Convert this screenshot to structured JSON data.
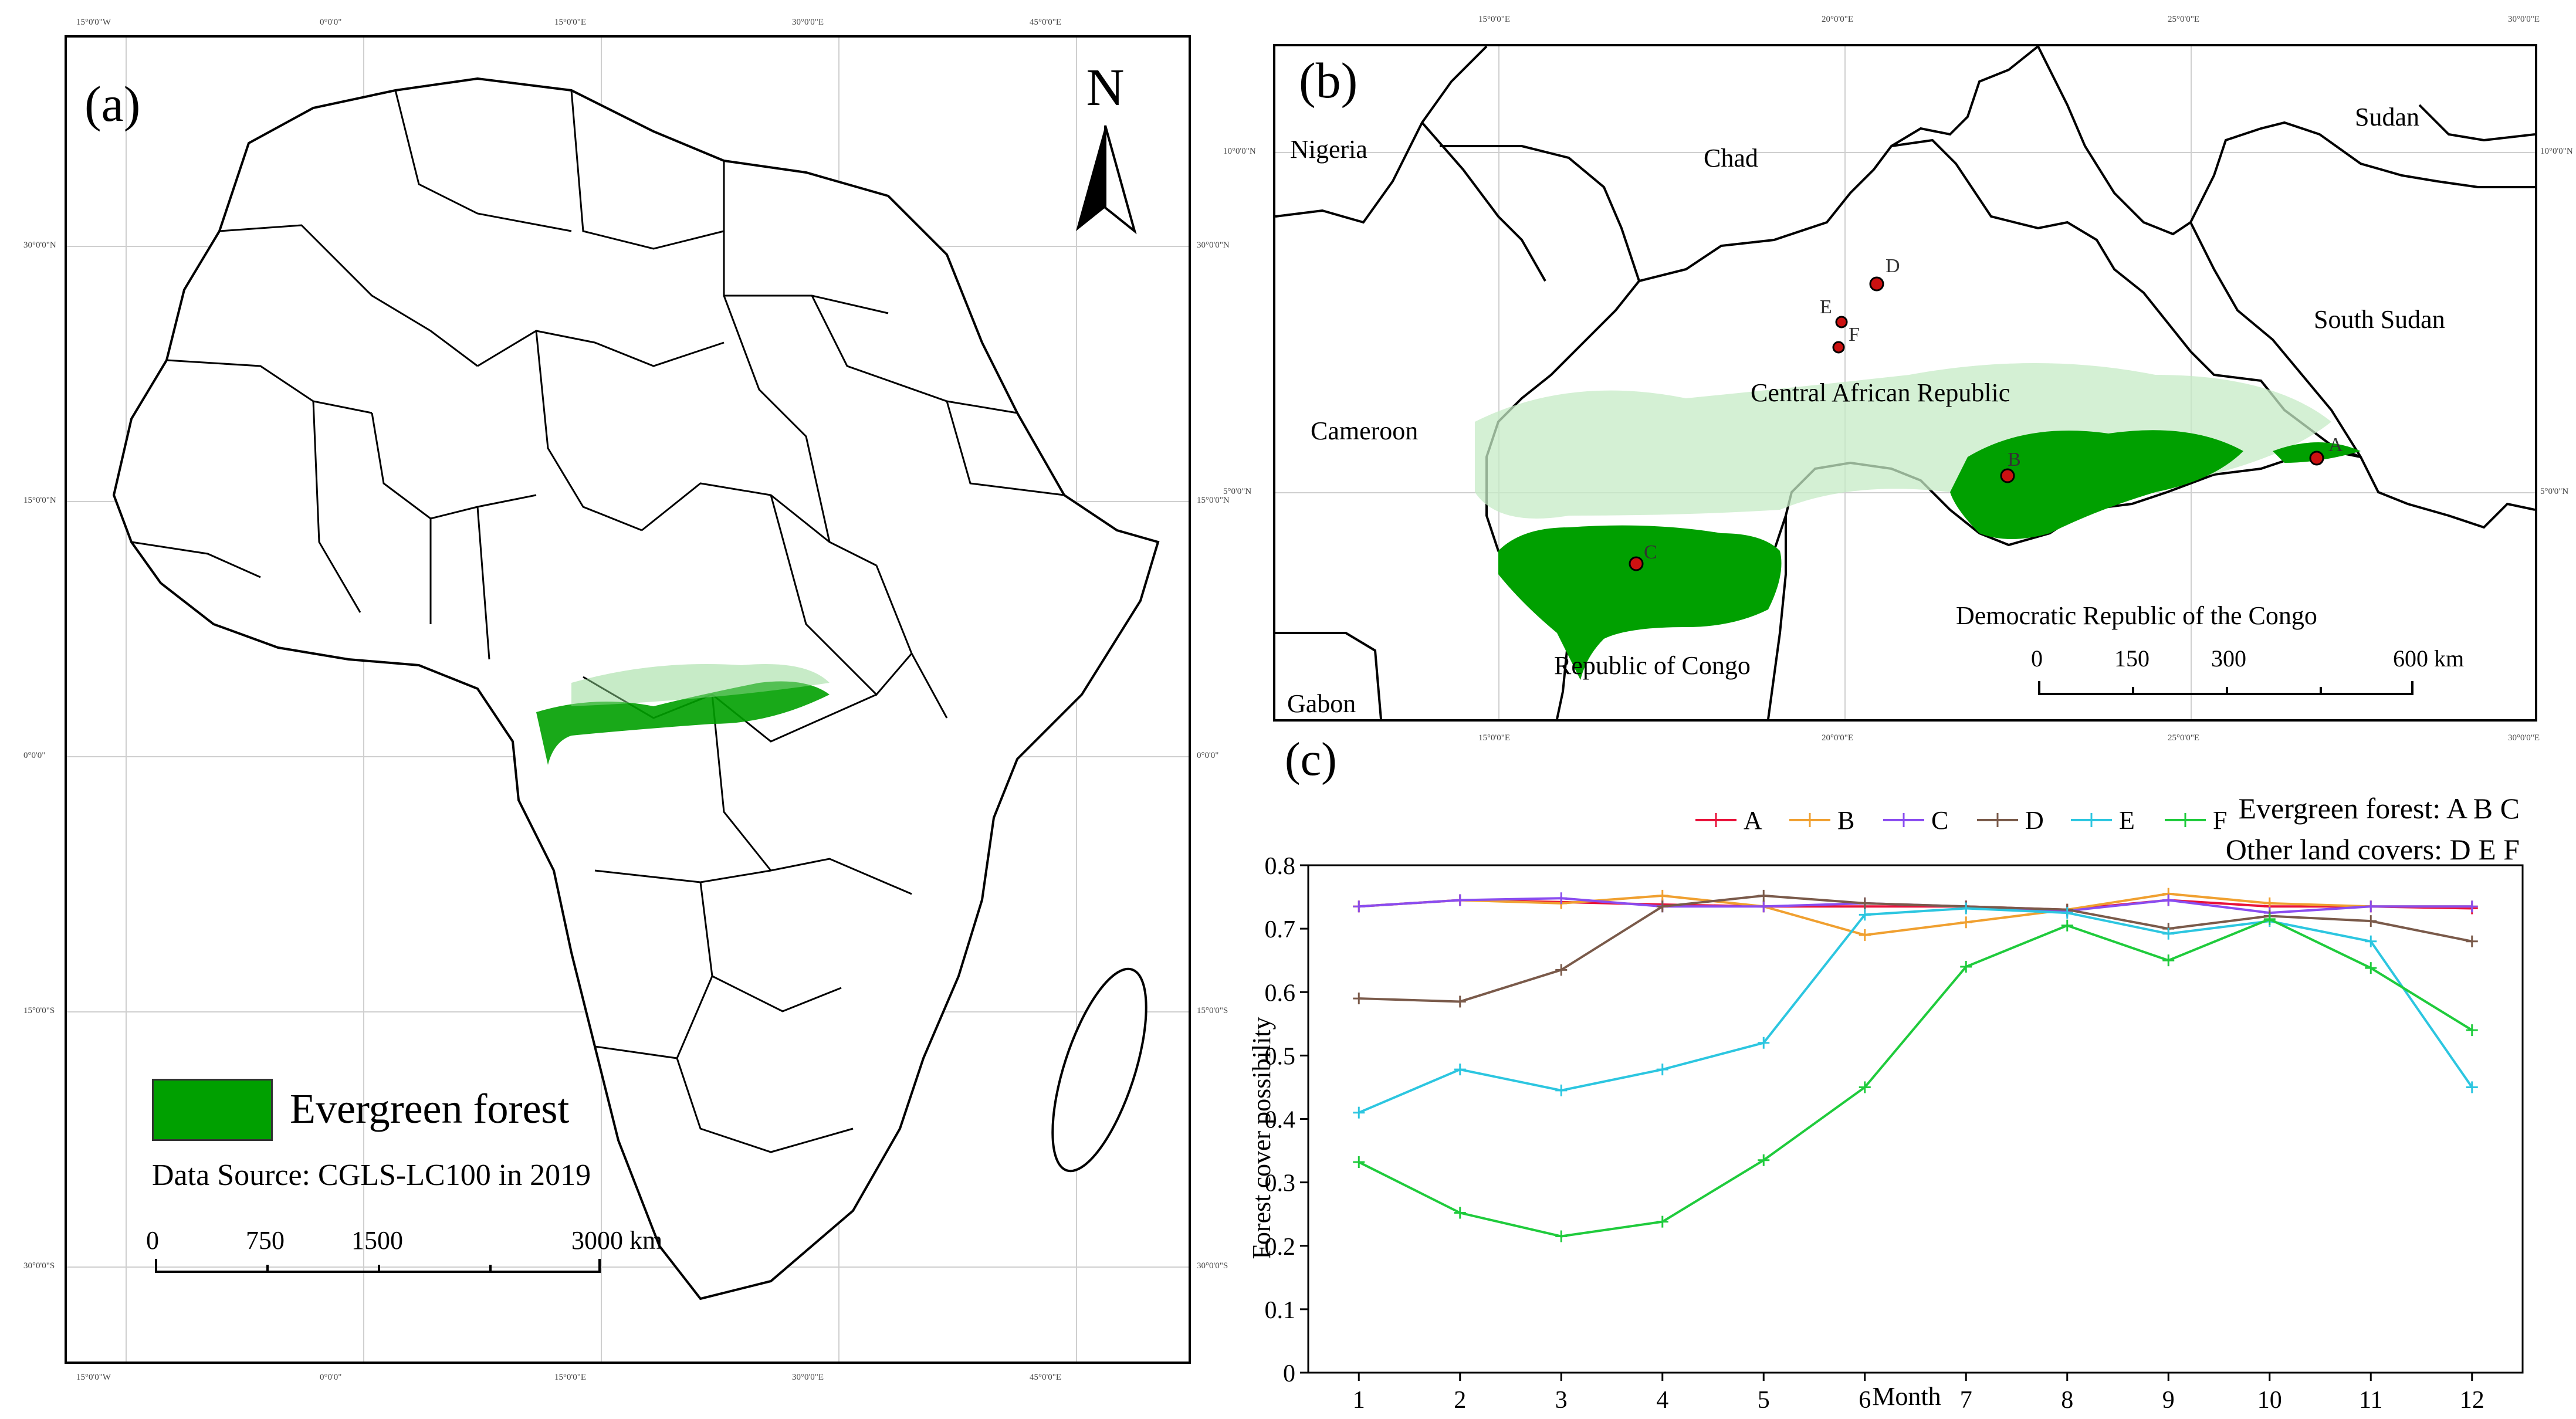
{
  "panel_a": {
    "label": "(a)",
    "north": "N",
    "lon_ticks": [
      "15°0'0\"W",
      "0°0'0\"",
      "15°0'0\"E",
      "30°0'0\"E",
      "45°0'0\"E"
    ],
    "lat_ticks": [
      "30°0'0\"N",
      "15°0'0\"N",
      "0°0'0\"",
      "15°0'0\"S",
      "30°0'0\"S"
    ],
    "legend_label": "Evergreen forest",
    "legend_color": "#00a000",
    "data_source": "Data Source: CGLS-LC100 in 2019",
    "scale": [
      "0",
      "750",
      "1500",
      "3000 km"
    ]
  },
  "panel_b": {
    "label": "(b)",
    "lon_ticks": [
      "15°0'0\"E",
      "20°0'0\"E",
      "25°0'0\"E",
      "30°0'0\"E"
    ],
    "lat_ticks": [
      "10°0'0\"N",
      "5°0'0\"N"
    ],
    "countries": [
      "Nigeria",
      "Chad",
      "Sudan",
      "South Sudan",
      "Cameroon",
      "Central African Republic",
      "Democratic Republic of the Congo",
      "Republic of Congo",
      "Gabon"
    ],
    "points": [
      "A",
      "B",
      "C",
      "D",
      "E",
      "F"
    ],
    "point_color": "#cc1111",
    "scale": [
      "0",
      "150",
      "300",
      "600 km"
    ]
  },
  "chart_data": {
    "type": "line",
    "panel_label": "(c)",
    "title_lines": [
      "Evergreen forest: A B C",
      "Other land covers: D E F"
    ],
    "xlabel": "Month",
    "ylabel": "Forest cover possibility",
    "x": [
      1,
      2,
      3,
      4,
      5,
      6,
      7,
      8,
      9,
      10,
      11,
      12
    ],
    "ylim": [
      0,
      0.8
    ],
    "yticks": [
      "0",
      "0.1",
      "0.2",
      "0.3",
      "0.4",
      "0.5",
      "0.6",
      "0.7",
      "0.8"
    ],
    "series": [
      {
        "name": "A",
        "color": "#e8123a",
        "values": [
          0.735,
          0.745,
          0.742,
          0.738,
          0.735,
          0.735,
          0.735,
          0.73,
          0.745,
          0.735,
          0.735,
          0.732
        ]
      },
      {
        "name": "B",
        "color": "#f0a030",
        "values": [
          0.735,
          0.745,
          0.74,
          0.752,
          0.735,
          0.69,
          0.71,
          0.73,
          0.755,
          0.74,
          0.735,
          0.735
        ]
      },
      {
        "name": "C",
        "color": "#8a4cf0",
        "values": [
          0.735,
          0.745,
          0.748,
          0.735,
          0.735,
          0.74,
          0.735,
          0.728,
          0.745,
          0.725,
          0.735,
          0.735
        ]
      },
      {
        "name": "D",
        "color": "#7a5a4a",
        "values": [
          0.59,
          0.585,
          0.635,
          0.735,
          0.752,
          0.74,
          0.735,
          0.73,
          0.7,
          0.72,
          0.712,
          0.68
        ]
      },
      {
        "name": "E",
        "color": "#2cc6e0",
        "values": [
          0.41,
          0.478,
          0.445,
          0.478,
          0.52,
          0.722,
          0.732,
          0.725,
          0.692,
          0.712,
          0.68,
          0.45
        ]
      },
      {
        "name": "F",
        "color": "#1fcb3c",
        "values": [
          0.332,
          0.252,
          0.215,
          0.238,
          0.335,
          0.45,
          0.64,
          0.705,
          0.65,
          0.715,
          0.638,
          0.54
        ]
      }
    ],
    "legend_position": "top"
  }
}
